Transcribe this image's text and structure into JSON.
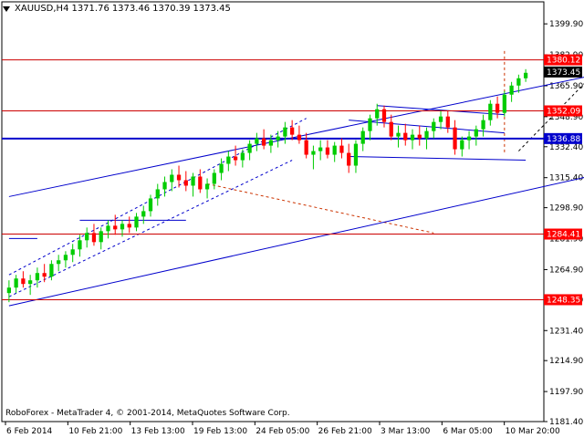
{
  "header": {
    "symbol": "XAUUSD,H4",
    "open": "1371.76",
    "high": "1373.46",
    "low": "1370.39",
    "close": "1373.45"
  },
  "copyright": "RoboForex - MetaTrader 4, © 2001-2014, MetaQuotes Software Corp.",
  "colors": {
    "candle_up": "#00cc00",
    "candle_down": "#ff0000",
    "trendline": "#0000cc",
    "level": "#cc0000",
    "dashed": "#cc3300",
    "forecast": "#000000",
    "label_bg": "#ff0000",
    "blue_label_bg": "#0000cc"
  },
  "chart_data": {
    "type": "candlestick",
    "ylim": [
      1181.4,
      1412.0
    ],
    "y_ticks": [
      "1399.90",
      "1382.90",
      "1365.90",
      "1348.90",
      "1332.40",
      "1315.40",
      "1298.90",
      "1281.90",
      "1264.90",
      "1248.40",
      "1231.40",
      "1214.90",
      "1197.90",
      "1181.40"
    ],
    "x_ticks": [
      "6 Feb 2014",
      "10 Feb 21:00",
      "13 Feb 13:00",
      "19 Feb 13:00",
      "24 Feb 05:00",
      "26 Feb 21:00",
      "3 Mar 13:00",
      "6 Mar 05:00",
      "10 Mar 20:00"
    ],
    "levels": [
      {
        "value": 1380.12,
        "label": "1380.12",
        "style": "red"
      },
      {
        "value": 1352.09,
        "label": "1352.09",
        "style": "red"
      },
      {
        "value": 1336.88,
        "label": "1336.88",
        "style": "blue"
      },
      {
        "value": 1284.41,
        "label": "1284.41",
        "style": "red"
      },
      {
        "value": 1248.35,
        "label": "1248.35",
        "style": "red"
      }
    ],
    "current_price": {
      "value": 1373.45,
      "label": "1373.45"
    },
    "candles": [
      [
        1252,
        1259,
        1247,
        1255
      ],
      [
        1255,
        1262,
        1252,
        1260
      ],
      [
        1260,
        1264,
        1255,
        1257
      ],
      [
        1257,
        1262,
        1251,
        1259
      ],
      [
        1259,
        1266,
        1255,
        1263
      ],
      [
        1263,
        1268,
        1258,
        1261
      ],
      [
        1261,
        1270,
        1259,
        1268
      ],
      [
        1268,
        1273,
        1264,
        1270
      ],
      [
        1270,
        1275,
        1266,
        1273
      ],
      [
        1273,
        1279,
        1269,
        1276
      ],
      [
        1276,
        1284,
        1272,
        1281
      ],
      [
        1281,
        1288,
        1277,
        1285
      ],
      [
        1285,
        1290,
        1278,
        1280
      ],
      [
        1280,
        1288,
        1276,
        1286
      ],
      [
        1286,
        1292,
        1282,
        1289
      ],
      [
        1289,
        1295,
        1284,
        1287
      ],
      [
        1287,
        1292,
        1283,
        1290
      ],
      [
        1290,
        1294,
        1285,
        1288
      ],
      [
        1288,
        1296,
        1286,
        1294
      ],
      [
        1294,
        1300,
        1290,
        1297
      ],
      [
        1297,
        1306,
        1294,
        1304
      ],
      [
        1304,
        1312,
        1300,
        1309
      ],
      [
        1309,
        1316,
        1305,
        1313
      ],
      [
        1313,
        1320,
        1308,
        1317
      ],
      [
        1317,
        1322,
        1310,
        1314
      ],
      [
        1314,
        1319,
        1308,
        1311
      ],
      [
        1311,
        1318,
        1305,
        1316
      ],
      [
        1316,
        1320,
        1307,
        1309
      ],
      [
        1309,
        1315,
        1304,
        1312
      ],
      [
        1312,
        1320,
        1309,
        1318
      ],
      [
        1318,
        1326,
        1314,
        1323
      ],
      [
        1323,
        1330,
        1319,
        1327
      ],
      [
        1327,
        1333,
        1322,
        1325
      ],
      [
        1325,
        1331,
        1321,
        1329
      ],
      [
        1329,
        1336,
        1325,
        1334
      ],
      [
        1334,
        1340,
        1330,
        1337
      ],
      [
        1337,
        1342,
        1331,
        1333
      ],
      [
        1333,
        1339,
        1329,
        1336
      ],
      [
        1336,
        1341,
        1332,
        1338
      ],
      [
        1338,
        1346,
        1334,
        1343
      ],
      [
        1343,
        1347,
        1336,
        1339
      ],
      [
        1339,
        1344,
        1334,
        1336
      ],
      [
        1336,
        1340,
        1326,
        1328
      ],
      [
        1328,
        1333,
        1320,
        1330
      ],
      [
        1330,
        1336,
        1325,
        1332
      ],
      [
        1332,
        1336,
        1326,
        1328
      ],
      [
        1328,
        1335,
        1324,
        1333
      ],
      [
        1333,
        1337,
        1326,
        1329
      ],
      [
        1329,
        1334,
        1318,
        1322
      ],
      [
        1322,
        1336,
        1318,
        1334
      ],
      [
        1334,
        1343,
        1330,
        1341
      ],
      [
        1341,
        1350,
        1336,
        1348
      ],
      [
        1348,
        1356,
        1344,
        1353
      ],
      [
        1353,
        1355,
        1343,
        1346
      ],
      [
        1346,
        1350,
        1336,
        1338
      ],
      [
        1338,
        1344,
        1332,
        1340
      ],
      [
        1340,
        1345,
        1333,
        1336
      ],
      [
        1336,
        1342,
        1331,
        1339
      ],
      [
        1339,
        1344,
        1333,
        1337
      ],
      [
        1337,
        1343,
        1331,
        1341
      ],
      [
        1341,
        1348,
        1337,
        1346
      ],
      [
        1346,
        1352,
        1342,
        1349
      ],
      [
        1349,
        1352,
        1340,
        1343
      ],
      [
        1343,
        1347,
        1328,
        1331
      ],
      [
        1331,
        1338,
        1327,
        1336
      ],
      [
        1336,
        1341,
        1331,
        1338
      ],
      [
        1338,
        1344,
        1333,
        1342
      ],
      [
        1342,
        1350,
        1338,
        1347
      ],
      [
        1347,
        1358,
        1344,
        1356
      ],
      [
        1356,
        1360,
        1348,
        1351
      ],
      [
        1351,
        1363,
        1349,
        1361
      ],
      [
        1361,
        1368,
        1357,
        1366
      ],
      [
        1366,
        1372,
        1362,
        1370
      ],
      [
        1370,
        1375,
        1368,
        1373
      ]
    ],
    "trendlines": [
      {
        "from": [
          0,
          1305
        ],
        "to": [
          83,
          1372
        ],
        "style": "solid-blue"
      },
      {
        "from": [
          0,
          1245
        ],
        "to": [
          83,
          1317
        ],
        "style": "solid-blue"
      },
      {
        "from": [
          52,
          1355
        ],
        "to": [
          70,
          1350
        ],
        "style": "solid-blue"
      },
      {
        "from": [
          48,
          1327
        ],
        "to": [
          73,
          1325
        ],
        "style": "solid-blue"
      },
      {
        "from": [
          48,
          1347
        ],
        "to": [
          70,
          1340
        ],
        "style": "solid-blue"
      },
      {
        "from": [
          10,
          1292
        ],
        "to": [
          25,
          1292
        ],
        "style": "solid-blue"
      },
      {
        "from": [
          0,
          1282
        ],
        "to": [
          4,
          1282
        ],
        "style": "solid-blue"
      }
    ],
    "dashed_lines": [
      {
        "from": [
          0,
          1250
        ],
        "to": [
          40,
          1325
        ],
        "style": "dash-blue"
      },
      {
        "from": [
          0,
          1262
        ],
        "to": [
          42,
          1348
        ],
        "style": "dash-blue"
      },
      {
        "from": [
          28,
          1312
        ],
        "to": [
          60,
          1285
        ],
        "style": "dash-red"
      },
      {
        "from": [
          70,
          1385
        ],
        "to": [
          70,
          1328
        ],
        "style": "dash-red"
      },
      {
        "from": [
          72,
          1330
        ],
        "to": [
          82,
          1370
        ],
        "style": "dash-black"
      }
    ]
  }
}
